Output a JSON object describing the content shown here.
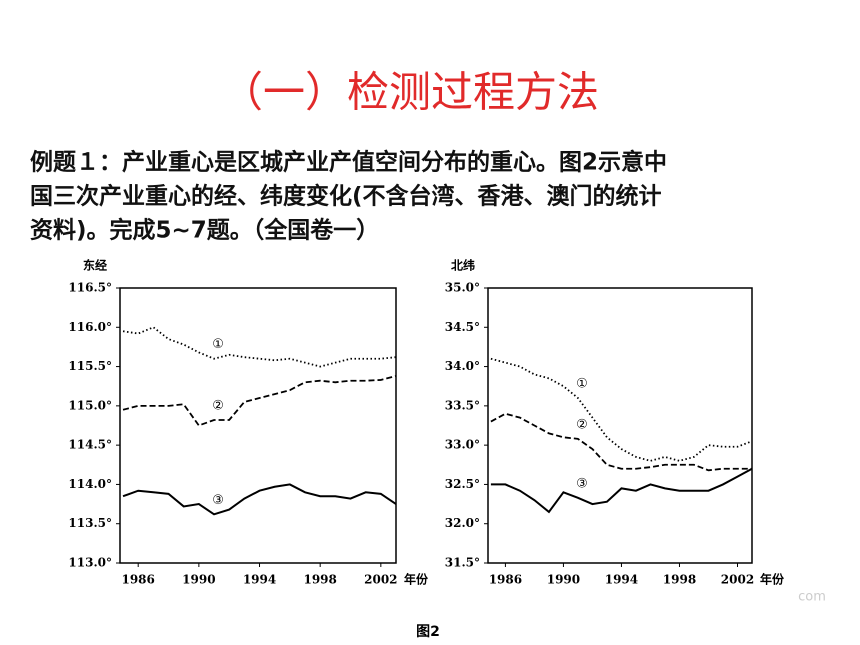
{
  "title": "（一）检测过程方法",
  "question": [
    "例题１：产业重心是区城产业产值空间分布的重心。图2示意中",
    "国三次产业重心的经、纬度变化(不含台湾、香港、澳门的统计",
    "资料)。完成5~7题。（全国卷一）"
  ],
  "figure_label": "图2",
  "watermark": "com",
  "chart_data": [
    {
      "type": "line",
      "y_label": "东经",
      "x_label": "年份",
      "x": [
        1985,
        1986,
        1987,
        1988,
        1989,
        1990,
        1991,
        1992,
        1993,
        1994,
        1995,
        1996,
        1997,
        1998,
        1999,
        2000,
        2001,
        2002,
        2003
      ],
      "xlim": [
        1984.8,
        2003
      ],
      "xticks": [
        1986,
        1990,
        1994,
        1998,
        2002
      ],
      "ylim": [
        113.0,
        116.5
      ],
      "yticks": [
        {
          "value": 113.0,
          "label": "113.0°"
        },
        {
          "value": 113.5,
          "label": "113.5°"
        },
        {
          "value": 114.0,
          "label": "114.0°"
        },
        {
          "value": 114.5,
          "label": "114.5°"
        },
        {
          "value": 115.0,
          "label": "115.0°"
        },
        {
          "value": 115.5,
          "label": "115.5°"
        },
        {
          "value": 116.0,
          "label": "116.0°"
        },
        {
          "value": 116.5,
          "label": "116.5°"
        }
      ],
      "series": [
        {
          "name": "①",
          "color": "#000",
          "style": "dotted",
          "values": [
            115.95,
            115.92,
            116.0,
            115.85,
            115.78,
            115.68,
            115.6,
            115.65,
            115.62,
            115.6,
            115.58,
            115.6,
            115.55,
            115.5,
            115.55,
            115.6,
            115.6,
            115.6,
            115.62
          ]
        },
        {
          "name": "②",
          "color": "#000",
          "style": "dashed",
          "values": [
            114.95,
            115.0,
            115.0,
            115.0,
            115.02,
            114.75,
            114.82,
            114.82,
            115.05,
            115.1,
            115.15,
            115.2,
            115.3,
            115.32,
            115.3,
            115.32,
            115.32,
            115.33,
            115.38
          ]
        },
        {
          "name": "③",
          "color": "#000",
          "style": "solid",
          "values": [
            113.85,
            113.92,
            113.9,
            113.88,
            113.72,
            113.75,
            113.62,
            113.68,
            113.82,
            113.92,
            113.97,
            114.0,
            113.9,
            113.85,
            113.85,
            113.82,
            113.9,
            113.88,
            113.75
          ]
        }
      ]
    },
    {
      "type": "line",
      "y_label": "北纬",
      "x_label": "年份",
      "x": [
        1985,
        1986,
        1987,
        1988,
        1989,
        1990,
        1991,
        1992,
        1993,
        1994,
        1995,
        1996,
        1997,
        1998,
        1999,
        2000,
        2001,
        2002,
        2003
      ],
      "xlim": [
        1984.8,
        2003
      ],
      "xticks": [
        1986,
        1990,
        1994,
        1998,
        2002
      ],
      "ylim": [
        31.5,
        35.0
      ],
      "yticks": [
        {
          "value": 31.5,
          "label": "31.5°"
        },
        {
          "value": 32.0,
          "label": "32.0°"
        },
        {
          "value": 32.5,
          "label": "32.5°"
        },
        {
          "value": 33.0,
          "label": "33.0°"
        },
        {
          "value": 33.5,
          "label": "33.5°"
        },
        {
          "value": 34.0,
          "label": "34.0°"
        },
        {
          "value": 34.5,
          "label": "34.5°"
        },
        {
          "value": 35.0,
          "label": "35.0°"
        }
      ],
      "series": [
        {
          "name": "①",
          "color": "#000",
          "style": "dotted",
          "values": [
            34.1,
            34.05,
            34.0,
            33.9,
            33.85,
            33.75,
            33.6,
            33.35,
            33.1,
            32.95,
            32.85,
            32.8,
            32.85,
            32.8,
            32.85,
            33.0,
            32.98,
            32.98,
            33.05
          ]
        },
        {
          "name": "②",
          "color": "#000",
          "style": "dashed",
          "values": [
            33.3,
            33.4,
            33.35,
            33.25,
            33.15,
            33.1,
            33.08,
            32.95,
            32.75,
            32.7,
            32.7,
            32.72,
            32.75,
            32.75,
            32.75,
            32.68,
            32.7,
            32.7,
            32.7
          ]
        },
        {
          "name": "③",
          "color": "#000",
          "style": "solid",
          "values": [
            32.5,
            32.5,
            32.42,
            32.3,
            32.15,
            32.4,
            32.33,
            32.25,
            32.28,
            32.45,
            32.42,
            32.5,
            32.45,
            32.42,
            32.42,
            32.42,
            32.5,
            32.6,
            32.7
          ]
        }
      ]
    }
  ]
}
